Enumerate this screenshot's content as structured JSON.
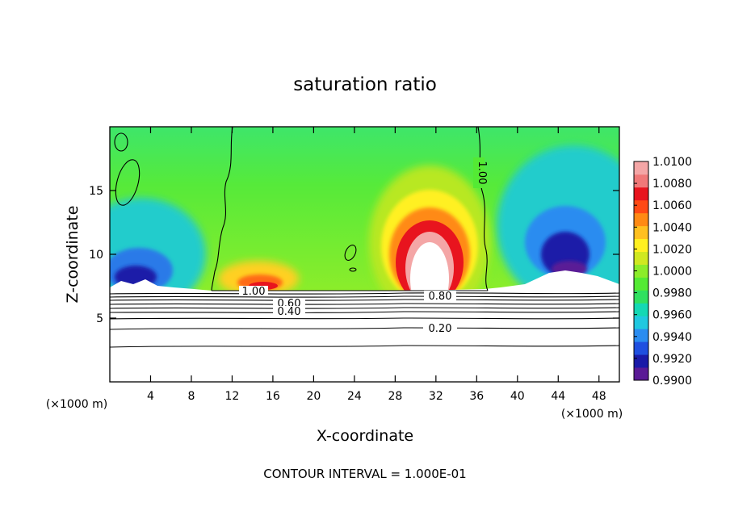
{
  "chart_data": {
    "type": "heatmap",
    "title": "saturation ratio",
    "xlabel": "X-coordinate",
    "ylabel": "Z-coordinate",
    "x_unit_left": "(×1000 m)",
    "x_unit_right": "(×1000 m)",
    "xlim": [
      0,
      50
    ],
    "ylim": [
      0,
      20
    ],
    "xticks": [
      4,
      8,
      12,
      16,
      20,
      24,
      28,
      32,
      36,
      40,
      44,
      48
    ],
    "yticks": [
      5,
      10,
      15
    ],
    "footer": "CONTOUR INTERVAL = 1.000E-01",
    "colorbar": {
      "min": 0.99,
      "max": 1.01,
      "tick_labels": [
        "1.0100",
        "1.0080",
        "1.0060",
        "1.0040",
        "1.0020",
        "1.0000",
        "0.9980",
        "0.9960",
        "0.9940",
        "0.9920",
        "0.9900"
      ],
      "colors": [
        "#5a1a96",
        "#1a1aa8",
        "#1f4fe0",
        "#2a8cf0",
        "#20c8e0",
        "#14d8b4",
        "#30e060",
        "#54ea34",
        "#8cec2a",
        "#d0e820",
        "#fff020",
        "#ffc020",
        "#ff8a14",
        "#ff4a14",
        "#e8141e",
        "#f07878",
        "#f4a6a6"
      ]
    },
    "contour_labels": [
      {
        "text": "1.00",
        "x": 14.5,
        "z": 7.2
      },
      {
        "text": "1.00",
        "x": 36.6,
        "z": 16.5
      },
      {
        "text": "0.80",
        "x": 33.0,
        "z": 6.8
      },
      {
        "text": "0.60",
        "x": 17.5,
        "z": 6.0
      },
      {
        "text": "0.40",
        "x": 17.5,
        "z": 5.5
      },
      {
        "text": "0.20",
        "x": 32.0,
        "z": 4.1
      }
    ]
  }
}
